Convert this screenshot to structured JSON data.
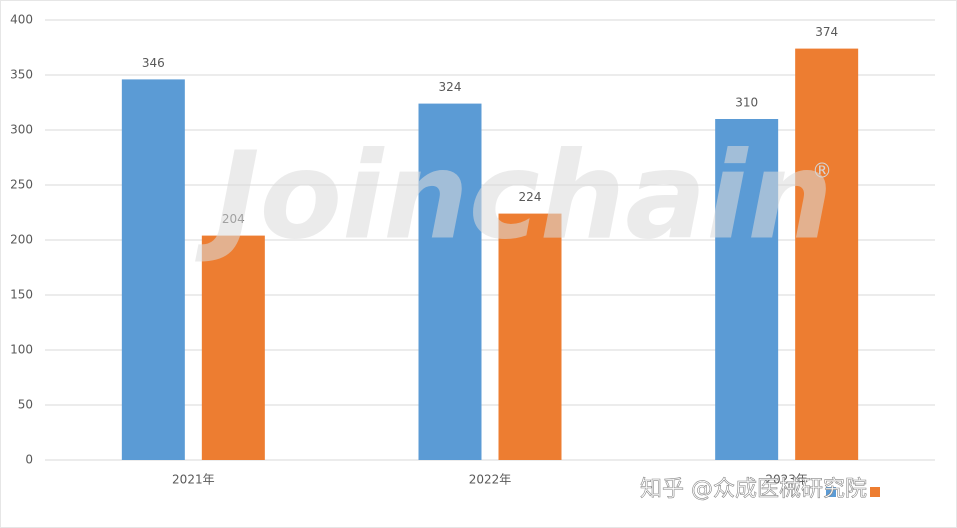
{
  "chart_data": {
    "type": "bar",
    "categories": [
      "2021年",
      "2022年",
      "2023年"
    ],
    "series": [
      {
        "color": "#5b9bd5",
        "values": [
          346,
          324,
          310
        ]
      },
      {
        "color": "#ed7d31",
        "values": [
          204,
          224,
          374
        ]
      }
    ],
    "ylim": [
      0,
      400
    ],
    "yticks": [
      0,
      50,
      100,
      150,
      200,
      250,
      300,
      350,
      400
    ],
    "grid": true,
    "watermark": "Joinchain",
    "watermark_mark": "®",
    "source_watermark": "知乎 @众成医械研究院"
  }
}
